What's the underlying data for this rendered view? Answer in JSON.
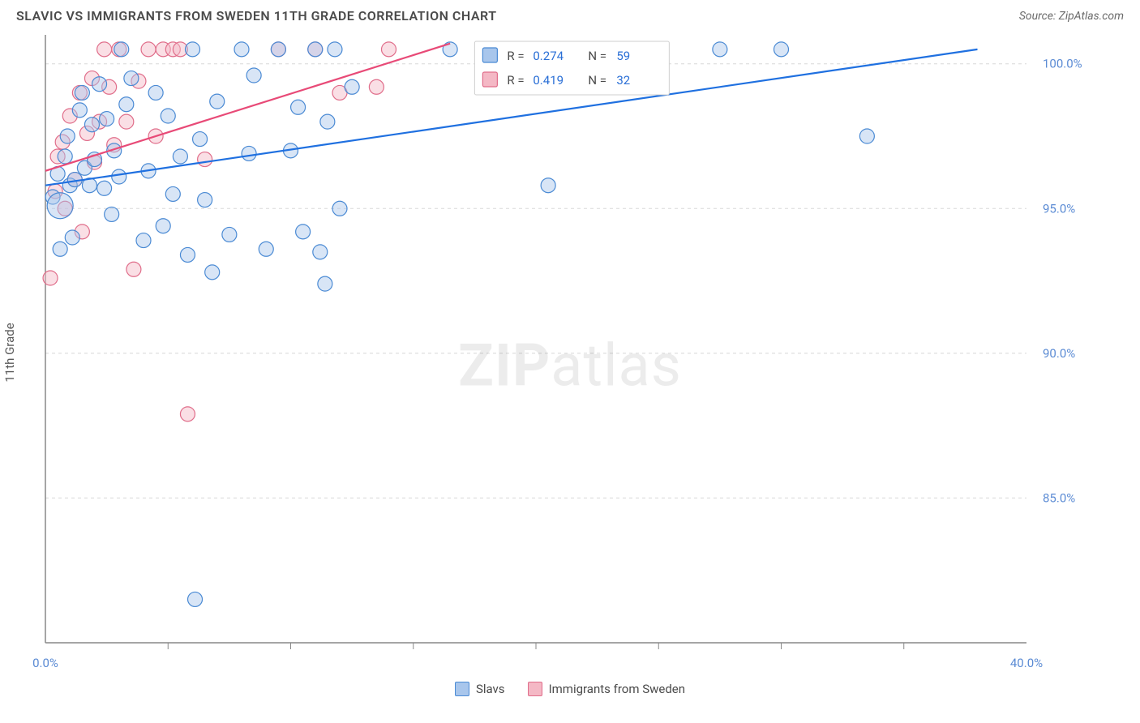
{
  "header": {
    "title": "SLAVIC VS IMMIGRANTS FROM SWEDEN 11TH GRADE CORRELATION CHART",
    "source": "Source: ZipAtlas.com"
  },
  "axes": {
    "ylabel": "11th Grade",
    "xlim": [
      0,
      40
    ],
    "ylim": [
      80,
      101
    ],
    "yticks": [
      {
        "v": 85,
        "label": "85.0%"
      },
      {
        "v": 90,
        "label": "90.0%"
      },
      {
        "v": 95,
        "label": "95.0%"
      },
      {
        "v": 100,
        "label": "100.0%"
      }
    ],
    "xticks_minor": [
      5,
      10,
      15,
      20,
      25,
      30,
      35
    ],
    "xlabels": [
      {
        "v": 0,
        "label": "0.0%"
      },
      {
        "v": 40,
        "label": "40.0%"
      }
    ]
  },
  "series": {
    "slavs": {
      "label": "Slavs",
      "color_fill": "#a8c6ec",
      "color_stroke": "#4a8ad4",
      "marker_r": 9,
      "fill_opacity": 0.45,
      "trend": {
        "x1": 0,
        "y1": 95.8,
        "x2": 38,
        "y2": 100.5,
        "color": "#1f70e0",
        "width": 2.2
      },
      "stats": {
        "R": "0.274",
        "N": "59"
      },
      "points": [
        {
          "x": 0.3,
          "y": 95.4
        },
        {
          "x": 0.5,
          "y": 96.2
        },
        {
          "x": 0.6,
          "y": 95.1,
          "r": 16
        },
        {
          "x": 0.6,
          "y": 93.6
        },
        {
          "x": 0.8,
          "y": 96.8
        },
        {
          "x": 0.9,
          "y": 97.5
        },
        {
          "x": 1.0,
          "y": 95.8
        },
        {
          "x": 1.1,
          "y": 94.0
        },
        {
          "x": 1.2,
          "y": 96.0
        },
        {
          "x": 1.4,
          "y": 98.4
        },
        {
          "x": 1.5,
          "y": 99.0
        },
        {
          "x": 1.6,
          "y": 96.4
        },
        {
          "x": 1.8,
          "y": 95.8
        },
        {
          "x": 1.9,
          "y": 97.9
        },
        {
          "x": 2.0,
          "y": 96.7
        },
        {
          "x": 2.2,
          "y": 99.3
        },
        {
          "x": 2.4,
          "y": 95.7
        },
        {
          "x": 2.5,
          "y": 98.1
        },
        {
          "x": 2.7,
          "y": 94.8
        },
        {
          "x": 2.8,
          "y": 97.0
        },
        {
          "x": 3.0,
          "y": 96.1
        },
        {
          "x": 3.1,
          "y": 100.5
        },
        {
          "x": 3.3,
          "y": 98.6
        },
        {
          "x": 3.5,
          "y": 99.5
        },
        {
          "x": 4.0,
          "y": 93.9
        },
        {
          "x": 4.2,
          "y": 96.3
        },
        {
          "x": 4.5,
          "y": 99.0
        },
        {
          "x": 4.8,
          "y": 94.4
        },
        {
          "x": 5.0,
          "y": 98.2
        },
        {
          "x": 5.2,
          "y": 95.5
        },
        {
          "x": 5.5,
          "y": 96.8
        },
        {
          "x": 5.8,
          "y": 93.4
        },
        {
          "x": 6.0,
          "y": 100.5
        },
        {
          "x": 6.1,
          "y": 81.5
        },
        {
          "x": 6.3,
          "y": 97.4
        },
        {
          "x": 6.5,
          "y": 95.3
        },
        {
          "x": 6.8,
          "y": 92.8
        },
        {
          "x": 7.0,
          "y": 98.7
        },
        {
          "x": 7.5,
          "y": 94.1
        },
        {
          "x": 8.0,
          "y": 100.5
        },
        {
          "x": 8.3,
          "y": 96.9
        },
        {
          "x": 8.5,
          "y": 99.6
        },
        {
          "x": 9.0,
          "y": 93.6
        },
        {
          "x": 9.5,
          "y": 100.5
        },
        {
          "x": 10.0,
          "y": 97.0
        },
        {
          "x": 10.3,
          "y": 98.5
        },
        {
          "x": 10.5,
          "y": 94.2
        },
        {
          "x": 11.0,
          "y": 100.5
        },
        {
          "x": 11.2,
          "y": 93.5
        },
        {
          "x": 11.4,
          "y": 92.4
        },
        {
          "x": 11.5,
          "y": 98.0
        },
        {
          "x": 11.8,
          "y": 100.5
        },
        {
          "x": 12.0,
          "y": 95.0
        },
        {
          "x": 12.5,
          "y": 99.2
        },
        {
          "x": 16.5,
          "y": 100.5
        },
        {
          "x": 20.5,
          "y": 95.8
        },
        {
          "x": 27.5,
          "y": 100.5
        },
        {
          "x": 30.0,
          "y": 100.5
        },
        {
          "x": 33.5,
          "y": 97.5
        }
      ]
    },
    "sweden": {
      "label": "Immigrants from Sweden",
      "color_fill": "#f4b8c5",
      "color_stroke": "#e06d8a",
      "marker_r": 9,
      "fill_opacity": 0.45,
      "trend": {
        "x1": 0,
        "y1": 96.3,
        "x2": 16.5,
        "y2": 100.7,
        "color": "#e84a77",
        "width": 2.2
      },
      "stats": {
        "R": "0.419",
        "N": "32"
      },
      "points": [
        {
          "x": 0.2,
          "y": 92.6
        },
        {
          "x": 0.4,
          "y": 95.6
        },
        {
          "x": 0.5,
          "y": 96.8
        },
        {
          "x": 0.7,
          "y": 97.3
        },
        {
          "x": 0.8,
          "y": 95.0
        },
        {
          "x": 1.0,
          "y": 98.2
        },
        {
          "x": 1.2,
          "y": 96.0
        },
        {
          "x": 1.4,
          "y": 99.0
        },
        {
          "x": 1.5,
          "y": 94.2
        },
        {
          "x": 1.7,
          "y": 97.6
        },
        {
          "x": 1.9,
          "y": 99.5
        },
        {
          "x": 2.0,
          "y": 96.6
        },
        {
          "x": 2.2,
          "y": 98.0
        },
        {
          "x": 2.4,
          "y": 100.5
        },
        {
          "x": 2.6,
          "y": 99.2
        },
        {
          "x": 2.8,
          "y": 97.2
        },
        {
          "x": 3.0,
          "y": 100.5
        },
        {
          "x": 3.3,
          "y": 98.0
        },
        {
          "x": 3.6,
          "y": 92.9
        },
        {
          "x": 3.8,
          "y": 99.4
        },
        {
          "x": 4.2,
          "y": 100.5
        },
        {
          "x": 4.5,
          "y": 97.5
        },
        {
          "x": 4.8,
          "y": 100.5
        },
        {
          "x": 5.2,
          "y": 100.5
        },
        {
          "x": 5.5,
          "y": 100.5
        },
        {
          "x": 5.8,
          "y": 87.9
        },
        {
          "x": 6.5,
          "y": 96.7
        },
        {
          "x": 9.5,
          "y": 100.5
        },
        {
          "x": 11.0,
          "y": 100.5
        },
        {
          "x": 12.0,
          "y": 99.0
        },
        {
          "x": 13.5,
          "y": 99.2
        },
        {
          "x": 14.0,
          "y": 100.5
        }
      ]
    }
  },
  "watermark": {
    "bold": "ZIP",
    "rest": "atlas"
  },
  "legend_top": {
    "bg": "#ffffff",
    "border": "#cfcfcf",
    "rows": [
      {
        "swatch_fill": "#a8c6ec",
        "swatch_stroke": "#4a8ad4",
        "r_label": "R =",
        "r_val": "0.274",
        "n_label": "N =",
        "n_val": "59"
      },
      {
        "swatch_fill": "#f4b8c5",
        "swatch_stroke": "#e06d8a",
        "r_label": "R =",
        "r_val": "0.419",
        "n_label": "N =",
        "n_val": "32"
      }
    ]
  },
  "chart_style": {
    "background": "#ffffff",
    "grid_color": "#d8d8d8",
    "axis_color": "#888888",
    "tick_label_color": "#5b8bd4"
  }
}
